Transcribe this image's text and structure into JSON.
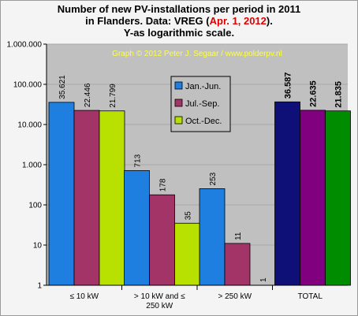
{
  "title": {
    "line1": "Number of new PV-installations per period in 2011",
    "line2_pre": "in Flanders. Data: VREG (",
    "line2_red": "Apr. 1, 2012",
    "line2_post": ").",
    "line3": "Y-as logarithmic  scale."
  },
  "watermark": "Graph © 2012 Peter J. Segaar / www.polderpv.nl",
  "colors": {
    "plot_bg": "#c0c0c0",
    "jan_jun": "#1e7fe0",
    "jul_sep": "#a23468",
    "oct_dec": "#b8e000",
    "total_jan_jun": "#0f0f78",
    "total_jul_sep": "#800080",
    "total_oct_dec": "#008c00",
    "watermark": "#ffff40"
  },
  "chart_data": {
    "type": "bar",
    "log_scale": true,
    "ylim": [
      1,
      1000000
    ],
    "y_ticks": [
      {
        "value": 1,
        "label": "1"
      },
      {
        "value": 10,
        "label": "10"
      },
      {
        "value": 100,
        "label": "100"
      },
      {
        "value": 1000,
        "label": "1.000"
      },
      {
        "value": 10000,
        "label": "10.000"
      },
      {
        "value": 100000,
        "label": "100.000"
      },
      {
        "value": 1000000,
        "label": "1.000.000"
      }
    ],
    "categories": [
      "≤ 10 kW",
      "> 10 kW and ≤ 250 kW",
      "> 250 kW",
      "TOTAL"
    ],
    "category_label_lines": [
      [
        "≤ 10 kW"
      ],
      [
        "> 10 kW and ≤",
        "250 kW"
      ],
      [
        "> 250 kW"
      ],
      [
        "TOTAL"
      ]
    ],
    "series": [
      {
        "name": "Jan.-Jun.",
        "values": [
          35621,
          713,
          253,
          36587
        ],
        "labels": [
          "35.621",
          "713",
          "253",
          "36.587"
        ]
      },
      {
        "name": "Jul.-Sep.",
        "values": [
          22446,
          178,
          11,
          22635
        ],
        "labels": [
          "22.446",
          "178",
          "11",
          "22.635"
        ]
      },
      {
        "name": "Oct.-Dec.",
        "values": [
          21799,
          35,
          1,
          21835
        ],
        "labels": [
          "21.799",
          "35",
          "1",
          "21.835"
        ]
      }
    ],
    "legend_position": "upper-center"
  }
}
